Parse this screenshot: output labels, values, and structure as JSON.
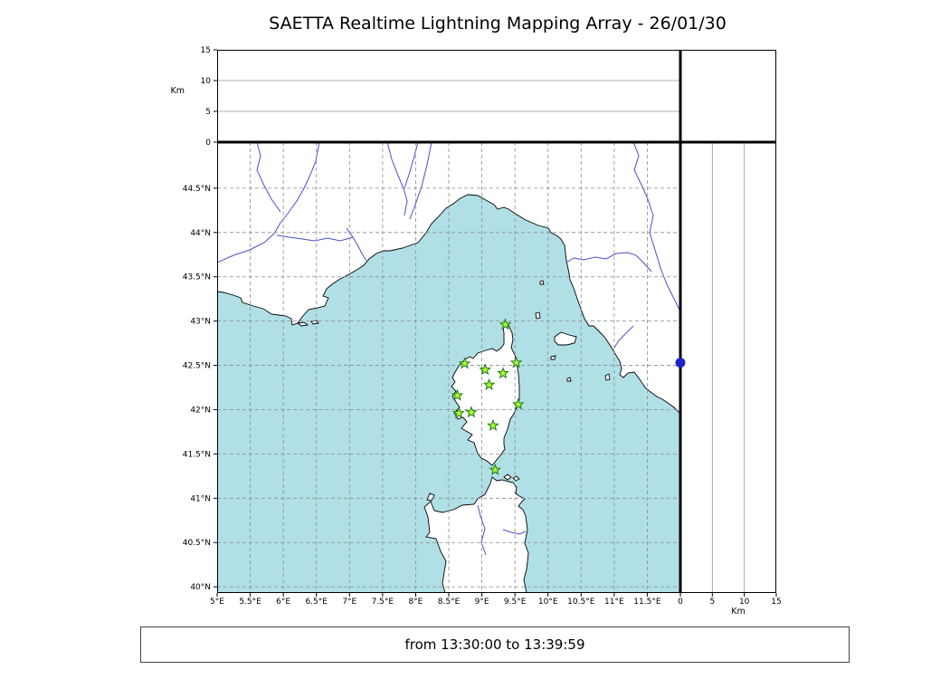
{
  "title": "SAETTA Realtime Lightning Mapping Array - 26/01/30",
  "status_text": "from 13:30:00 to 13:39:59",
  "colors": {
    "sea": "#b0e0e6",
    "land": "#ffffff",
    "coast": "#000000",
    "river": "#4a50c8",
    "grid": "#8c8c8c",
    "panel_grid": "#999999",
    "station_fill": "#adff2f",
    "station_stroke": "#1f7a1f",
    "source_dot": "#2222cc"
  },
  "altitude_axis": {
    "unit_label": "Km",
    "ticks": [
      0,
      5,
      10,
      15
    ],
    "max_km": 15
  },
  "map": {
    "extent": {
      "lon_min": 5.0,
      "lon_max": 12.0,
      "lat_min": 39.93,
      "lat_max": 45.02
    },
    "lon_ticks": [
      {
        "lon": 5.0,
        "label": "5°E"
      },
      {
        "lon": 5.5,
        "label": "5.5°E"
      },
      {
        "lon": 6.0,
        "label": "6°E"
      },
      {
        "lon": 6.5,
        "label": "6.5°E"
      },
      {
        "lon": 7.0,
        "label": "7°E"
      },
      {
        "lon": 7.5,
        "label": "7.5°E"
      },
      {
        "lon": 8.0,
        "label": "8°E"
      },
      {
        "lon": 8.5,
        "label": "8.5°E"
      },
      {
        "lon": 9.0,
        "label": "9°E"
      },
      {
        "lon": 9.5,
        "label": "9.5°E"
      },
      {
        "lon": 10.0,
        "label": "10°E"
      },
      {
        "lon": 10.5,
        "label": "10.5°E"
      },
      {
        "lon": 11.0,
        "label": "11°E"
      },
      {
        "lon": 11.5,
        "label": "11.5°E"
      }
    ],
    "lat_ticks": [
      {
        "lat": 40.0,
        "label": "40°N"
      },
      {
        "lat": 40.5,
        "label": "40.5°N"
      },
      {
        "lat": 41.0,
        "label": "41°N"
      },
      {
        "lat": 41.5,
        "label": "41.5°N"
      },
      {
        "lat": 42.0,
        "label": "42°N"
      },
      {
        "lat": 42.5,
        "label": "42.5°N"
      },
      {
        "lat": 43.0,
        "label": "43°N"
      },
      {
        "lat": 43.5,
        "label": "43.5°N"
      },
      {
        "lat": 44.0,
        "label": "44°N"
      },
      {
        "lat": 44.5,
        "label": "44.5°N"
      }
    ]
  },
  "stations": [
    {
      "lon": 9.355,
      "lat": 42.96
    },
    {
      "lon": 8.74,
      "lat": 42.52
    },
    {
      "lon": 9.05,
      "lat": 42.45
    },
    {
      "lon": 9.52,
      "lat": 42.53
    },
    {
      "lon": 9.32,
      "lat": 42.41
    },
    {
      "lon": 9.11,
      "lat": 42.28
    },
    {
      "lon": 8.63,
      "lat": 42.16
    },
    {
      "lon": 9.55,
      "lat": 42.06
    },
    {
      "lon": 8.65,
      "lat": 41.96
    },
    {
      "lon": 8.84,
      "lat": 41.97
    },
    {
      "lon": 9.17,
      "lat": 41.82
    },
    {
      "lon": 9.2,
      "lat": 41.32
    }
  ],
  "sources": [
    {
      "lat": 42.53,
      "alt_km": 0
    }
  ]
}
